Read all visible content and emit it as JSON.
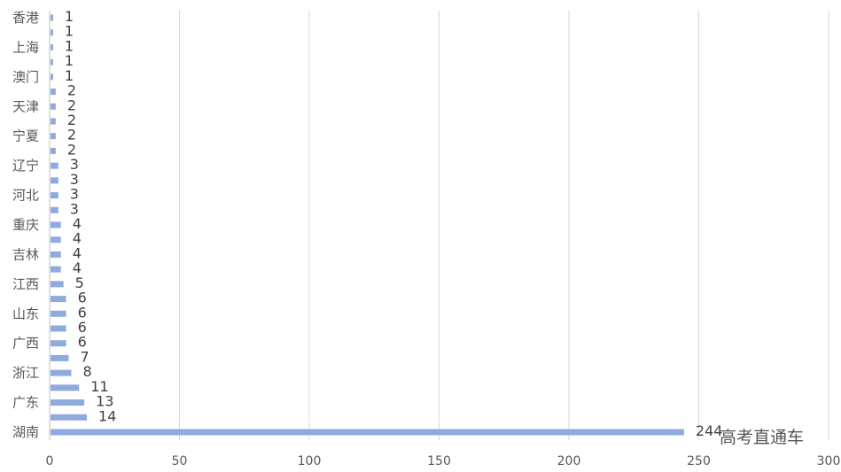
{
  "chart_data": {
    "type": "bar",
    "orientation": "horizontal",
    "categories": [
      "香港",
      "",
      "上海",
      "",
      "澳门",
      "",
      "天津",
      "",
      "宁夏",
      "",
      "辽宁",
      "",
      "河北",
      "",
      "重庆",
      "",
      "吉林",
      "",
      "江西",
      "",
      "山东",
      "",
      "广西",
      "",
      "浙江",
      "",
      "广东",
      "",
      "湖南"
    ],
    "values": [
      1,
      1,
      1,
      1,
      1,
      2,
      2,
      2,
      2,
      2,
      3,
      3,
      3,
      3,
      4,
      4,
      4,
      4,
      5,
      6,
      6,
      6,
      6,
      7,
      8,
      11,
      13,
      14,
      244
    ],
    "title": "",
    "xlabel": "",
    "ylabel": "",
    "xlim": [
      0,
      300
    ],
    "xticks": [
      "0",
      "50",
      "100",
      "150",
      "200",
      "250",
      "300"
    ],
    "grid": "vertical",
    "data_labels": true,
    "bar_color": "#8faadc",
    "gridline_color": "#d9d9d9"
  },
  "watermark": "高考直通车"
}
